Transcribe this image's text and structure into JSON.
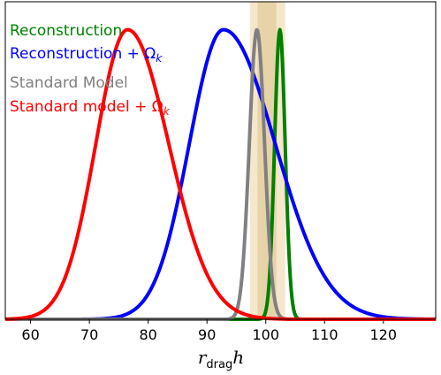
{
  "chart_data": {
    "type": "line",
    "xlabel_main": "r",
    "xlabel_sub": "drag",
    "xlabel_tail": "h",
    "xlim": [
      55.7,
      128.9
    ],
    "ylim": [
      0,
      1.0
    ],
    "x_ticks": [
      60,
      70,
      80,
      90,
      100,
      110,
      120
    ],
    "y_ticks_visible": false,
    "grid": false,
    "legend_position": "top-left",
    "bands": [
      {
        "x0": 97.3,
        "x1": 103.3,
        "color": "#f5e6cc"
      },
      {
        "x0": 98.6,
        "x1": 101.8,
        "color": "#e7d3a8"
      }
    ],
    "series": [
      {
        "name": "Reconstruction",
        "legend_label": "Reconstruction",
        "color": "#008000",
        "peak_x": 102.4,
        "peak_y": 0.912,
        "sigma_left": 0.9,
        "sigma_right": 0.9
      },
      {
        "name": "Reconstruction + Ωk",
        "legend_label": "Reconstruction + Ω",
        "legend_sub": "k",
        "color": "#0000ff",
        "peak_x": 92.8,
        "peak_y": 0.912,
        "sigma_left": 5.8,
        "sigma_right": 8.8
      },
      {
        "name": "Standard Model",
        "legend_label": "Standard Model",
        "color": "#808080",
        "peak_x": 98.5,
        "peak_y": 0.912,
        "sigma_left": 1.3,
        "sigma_right": 1.3
      },
      {
        "name": "Standard model + Ωk",
        "legend_label": "Standard model + Ω",
        "legend_sub": "k",
        "color": "#ff0000",
        "peak_x": 76.5,
        "peak_y": 0.912,
        "sigma_left": 5.4,
        "sigma_right": 7.0
      }
    ]
  }
}
